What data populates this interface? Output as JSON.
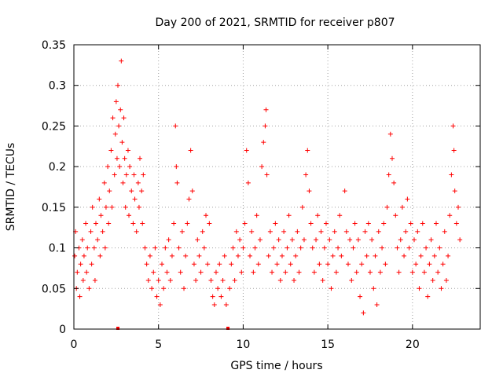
{
  "chart_data": {
    "type": "scatter",
    "title": "Day 200 of 2021, SRMTID for receiver p807",
    "xlabel": "GPS time / hours",
    "ylabel": "SRMTID / TECUs",
    "xlim": [
      0,
      24
    ],
    "ylim": [
      0,
      0.35
    ],
    "xticks": [
      0,
      5,
      10,
      15,
      20
    ],
    "yticks": [
      0,
      0.05,
      0.1,
      0.15,
      0.2,
      0.25,
      0.3,
      0.35
    ],
    "xtick_labels": [
      "0",
      "5",
      "10",
      "15",
      "20"
    ],
    "ytick_labels": [
      "0",
      "0.05",
      "0.1",
      "0.15",
      "0.2",
      "0.25",
      "0.3",
      "0.35"
    ],
    "grid": true,
    "marker": "+",
    "marker_color": "#ff0000",
    "baseline_markers": [
      2.6,
      9.1
    ],
    "series": [
      {
        "name": "SRMTID",
        "points": [
          [
            0.05,
            0.09
          ],
          [
            0.1,
            0.12
          ],
          [
            0.15,
            0.05
          ],
          [
            0.2,
            0.07
          ],
          [
            0.3,
            0.1
          ],
          [
            0.35,
            0.04
          ],
          [
            0.4,
            0.08
          ],
          [
            0.5,
            0.11
          ],
          [
            0.55,
            0.06
          ],
          [
            0.6,
            0.09
          ],
          [
            0.7,
            0.13
          ],
          [
            0.75,
            0.07
          ],
          [
            0.8,
            0.1
          ],
          [
            0.9,
            0.05
          ],
          [
            1.0,
            0.12
          ],
          [
            1.05,
            0.08
          ],
          [
            1.1,
            0.15
          ],
          [
            1.2,
            0.1
          ],
          [
            1.25,
            0.06
          ],
          [
            1.3,
            0.13
          ],
          [
            1.4,
            0.11
          ],
          [
            1.5,
            0.16
          ],
          [
            1.55,
            0.09
          ],
          [
            1.6,
            0.14
          ],
          [
            1.7,
            0.12
          ],
          [
            1.8,
            0.18
          ],
          [
            1.85,
            0.1
          ],
          [
            1.9,
            0.15
          ],
          [
            2.0,
            0.2
          ],
          [
            2.05,
            0.13
          ],
          [
            2.1,
            0.17
          ],
          [
            2.2,
            0.22
          ],
          [
            2.25,
            0.15
          ],
          [
            2.3,
            0.26
          ],
          [
            2.4,
            0.19
          ],
          [
            2.45,
            0.24
          ],
          [
            2.5,
            0.28
          ],
          [
            2.55,
            0.21
          ],
          [
            2.6,
            0.3
          ],
          [
            2.65,
            0.25
          ],
          [
            2.7,
            0.2
          ],
          [
            2.75,
            0.27
          ],
          [
            2.8,
            0.33
          ],
          [
            2.85,
            0.23
          ],
          [
            2.9,
            0.18
          ],
          [
            2.95,
            0.26
          ],
          [
            3.0,
            0.21
          ],
          [
            3.05,
            0.15
          ],
          [
            3.1,
            0.19
          ],
          [
            3.2,
            0.22
          ],
          [
            3.25,
            0.14
          ],
          [
            3.3,
            0.2
          ],
          [
            3.4,
            0.17
          ],
          [
            3.5,
            0.13
          ],
          [
            3.55,
            0.19
          ],
          [
            3.6,
            0.16
          ],
          [
            3.7,
            0.12
          ],
          [
            3.8,
            0.18
          ],
          [
            3.85,
            0.15
          ],
          [
            3.9,
            0.21
          ],
          [
            4.0,
            0.17
          ],
          [
            4.05,
            0.13
          ],
          [
            4.1,
            0.19
          ],
          [
            4.2,
            0.1
          ],
          [
            4.3,
            0.08
          ],
          [
            4.4,
            0.06
          ],
          [
            4.5,
            0.09
          ],
          [
            4.6,
            0.05
          ],
          [
            4.7,
            0.07
          ],
          [
            4.8,
            0.1
          ],
          [
            4.9,
            0.04
          ],
          [
            5.0,
            0.06
          ],
          [
            5.1,
            0.03
          ],
          [
            5.2,
            0.08
          ],
          [
            5.3,
            0.05
          ],
          [
            5.4,
            0.1
          ],
          [
            5.5,
            0.07
          ],
          [
            5.6,
            0.11
          ],
          [
            5.7,
            0.06
          ],
          [
            5.8,
            0.09
          ],
          [
            5.9,
            0.13
          ],
          [
            6.0,
            0.25
          ],
          [
            6.05,
            0.2
          ],
          [
            6.1,
            0.18
          ],
          [
            6.2,
            0.1
          ],
          [
            6.3,
            0.07
          ],
          [
            6.4,
            0.12
          ],
          [
            6.5,
            0.05
          ],
          [
            6.6,
            0.09
          ],
          [
            6.7,
            0.13
          ],
          [
            6.8,
            0.16
          ],
          [
            6.9,
            0.22
          ],
          [
            7.0,
            0.17
          ],
          [
            7.1,
            0.08
          ],
          [
            7.2,
            0.06
          ],
          [
            7.3,
            0.11
          ],
          [
            7.4,
            0.09
          ],
          [
            7.5,
            0.07
          ],
          [
            7.6,
            0.12
          ],
          [
            7.7,
            0.1
          ],
          [
            7.8,
            0.14
          ],
          [
            7.9,
            0.08
          ],
          [
            8.0,
            0.13
          ],
          [
            8.1,
            0.06
          ],
          [
            8.2,
            0.04
          ],
          [
            8.3,
            0.03
          ],
          [
            8.4,
            0.07
          ],
          [
            8.5,
            0.05
          ],
          [
            8.6,
            0.08
          ],
          [
            8.7,
            0.04
          ],
          [
            8.8,
            0.06
          ],
          [
            8.9,
            0.09
          ],
          [
            9.0,
            0.03
          ],
          [
            9.2,
            0.05
          ],
          [
            9.3,
            0.08
          ],
          [
            9.4,
            0.1
          ],
          [
            9.5,
            0.06
          ],
          [
            9.6,
            0.12
          ],
          [
            9.7,
            0.09
          ],
          [
            9.8,
            0.11
          ],
          [
            9.9,
            0.07
          ],
          [
            10.0,
            0.1
          ],
          [
            10.1,
            0.13
          ],
          [
            10.2,
            0.22
          ],
          [
            10.3,
            0.18
          ],
          [
            10.4,
            0.09
          ],
          [
            10.5,
            0.12
          ],
          [
            10.6,
            0.07
          ],
          [
            10.7,
            0.1
          ],
          [
            10.8,
            0.14
          ],
          [
            10.9,
            0.08
          ],
          [
            11.0,
            0.11
          ],
          [
            11.1,
            0.2
          ],
          [
            11.2,
            0.23
          ],
          [
            11.3,
            0.25
          ],
          [
            11.35,
            0.27
          ],
          [
            11.4,
            0.19
          ],
          [
            11.5,
            0.09
          ],
          [
            11.6,
            0.12
          ],
          [
            11.7,
            0.07
          ],
          [
            11.8,
            0.1
          ],
          [
            11.9,
            0.13
          ],
          [
            12.0,
            0.08
          ],
          [
            12.1,
            0.11
          ],
          [
            12.2,
            0.06
          ],
          [
            12.3,
            0.09
          ],
          [
            12.4,
            0.12
          ],
          [
            12.5,
            0.07
          ],
          [
            12.6,
            0.1
          ],
          [
            12.7,
            0.14
          ],
          [
            12.8,
            0.08
          ],
          [
            12.9,
            0.11
          ],
          [
            13.0,
            0.06
          ],
          [
            13.1,
            0.09
          ],
          [
            13.2,
            0.12
          ],
          [
            13.3,
            0.07
          ],
          [
            13.4,
            0.1
          ],
          [
            13.5,
            0.15
          ],
          [
            13.6,
            0.11
          ],
          [
            13.7,
            0.19
          ],
          [
            13.8,
            0.22
          ],
          [
            13.9,
            0.17
          ],
          [
            14.0,
            0.13
          ],
          [
            14.1,
            0.1
          ],
          [
            14.2,
            0.07
          ],
          [
            14.3,
            0.11
          ],
          [
            14.4,
            0.14
          ],
          [
            14.5,
            0.08
          ],
          [
            14.6,
            0.12
          ],
          [
            14.7,
            0.06
          ],
          [
            14.8,
            0.1
          ],
          [
            14.9,
            0.13
          ],
          [
            15.0,
            0.08
          ],
          [
            15.1,
            0.11
          ],
          [
            15.2,
            0.05
          ],
          [
            15.3,
            0.09
          ],
          [
            15.4,
            0.12
          ],
          [
            15.5,
            0.07
          ],
          [
            15.6,
            0.1
          ],
          [
            15.7,
            0.14
          ],
          [
            15.8,
            0.09
          ],
          [
            16.0,
            0.17
          ],
          [
            16.1,
            0.12
          ],
          [
            16.2,
            0.08
          ],
          [
            16.3,
            0.11
          ],
          [
            16.4,
            0.06
          ],
          [
            16.5,
            0.1
          ],
          [
            16.6,
            0.13
          ],
          [
            16.7,
            0.07
          ],
          [
            16.8,
            0.11
          ],
          [
            16.9,
            0.04
          ],
          [
            17.0,
            0.08
          ],
          [
            17.1,
            0.02
          ],
          [
            17.2,
            0.12
          ],
          [
            17.3,
            0.09
          ],
          [
            17.4,
            0.13
          ],
          [
            17.5,
            0.07
          ],
          [
            17.6,
            0.11
          ],
          [
            17.7,
            0.05
          ],
          [
            17.8,
            0.09
          ],
          [
            17.9,
            0.03
          ],
          [
            18.0,
            0.12
          ],
          [
            18.1,
            0.07
          ],
          [
            18.2,
            0.1
          ],
          [
            18.3,
            0.13
          ],
          [
            18.4,
            0.08
          ],
          [
            18.5,
            0.15
          ],
          [
            18.6,
            0.19
          ],
          [
            18.7,
            0.24
          ],
          [
            18.8,
            0.21
          ],
          [
            18.9,
            0.18
          ],
          [
            19.0,
            0.14
          ],
          [
            19.1,
            0.1
          ],
          [
            19.2,
            0.07
          ],
          [
            19.3,
            0.11
          ],
          [
            19.4,
            0.15
          ],
          [
            19.5,
            0.09
          ],
          [
            19.6,
            0.12
          ],
          [
            19.7,
            0.16
          ],
          [
            19.8,
            0.1
          ],
          [
            19.9,
            0.13
          ],
          [
            20.0,
            0.07
          ],
          [
            20.1,
            0.11
          ],
          [
            20.2,
            0.08
          ],
          [
            20.3,
            0.12
          ],
          [
            20.4,
            0.05
          ],
          [
            20.5,
            0.09
          ],
          [
            20.6,
            0.13
          ],
          [
            20.7,
            0.07
          ],
          [
            20.8,
            0.1
          ],
          [
            20.9,
            0.04
          ],
          [
            21.0,
            0.08
          ],
          [
            21.1,
            0.11
          ],
          [
            21.2,
            0.06
          ],
          [
            21.3,
            0.09
          ],
          [
            21.4,
            0.13
          ],
          [
            21.5,
            0.07
          ],
          [
            21.6,
            0.1
          ],
          [
            21.7,
            0.05
          ],
          [
            21.8,
            0.08
          ],
          [
            21.9,
            0.12
          ],
          [
            22.0,
            0.06
          ],
          [
            22.1,
            0.09
          ],
          [
            22.2,
            0.14
          ],
          [
            22.3,
            0.19
          ],
          [
            22.4,
            0.25
          ],
          [
            22.45,
            0.22
          ],
          [
            22.5,
            0.17
          ],
          [
            22.6,
            0.13
          ],
          [
            22.7,
            0.15
          ],
          [
            22.8,
            0.11
          ]
        ]
      }
    ]
  }
}
